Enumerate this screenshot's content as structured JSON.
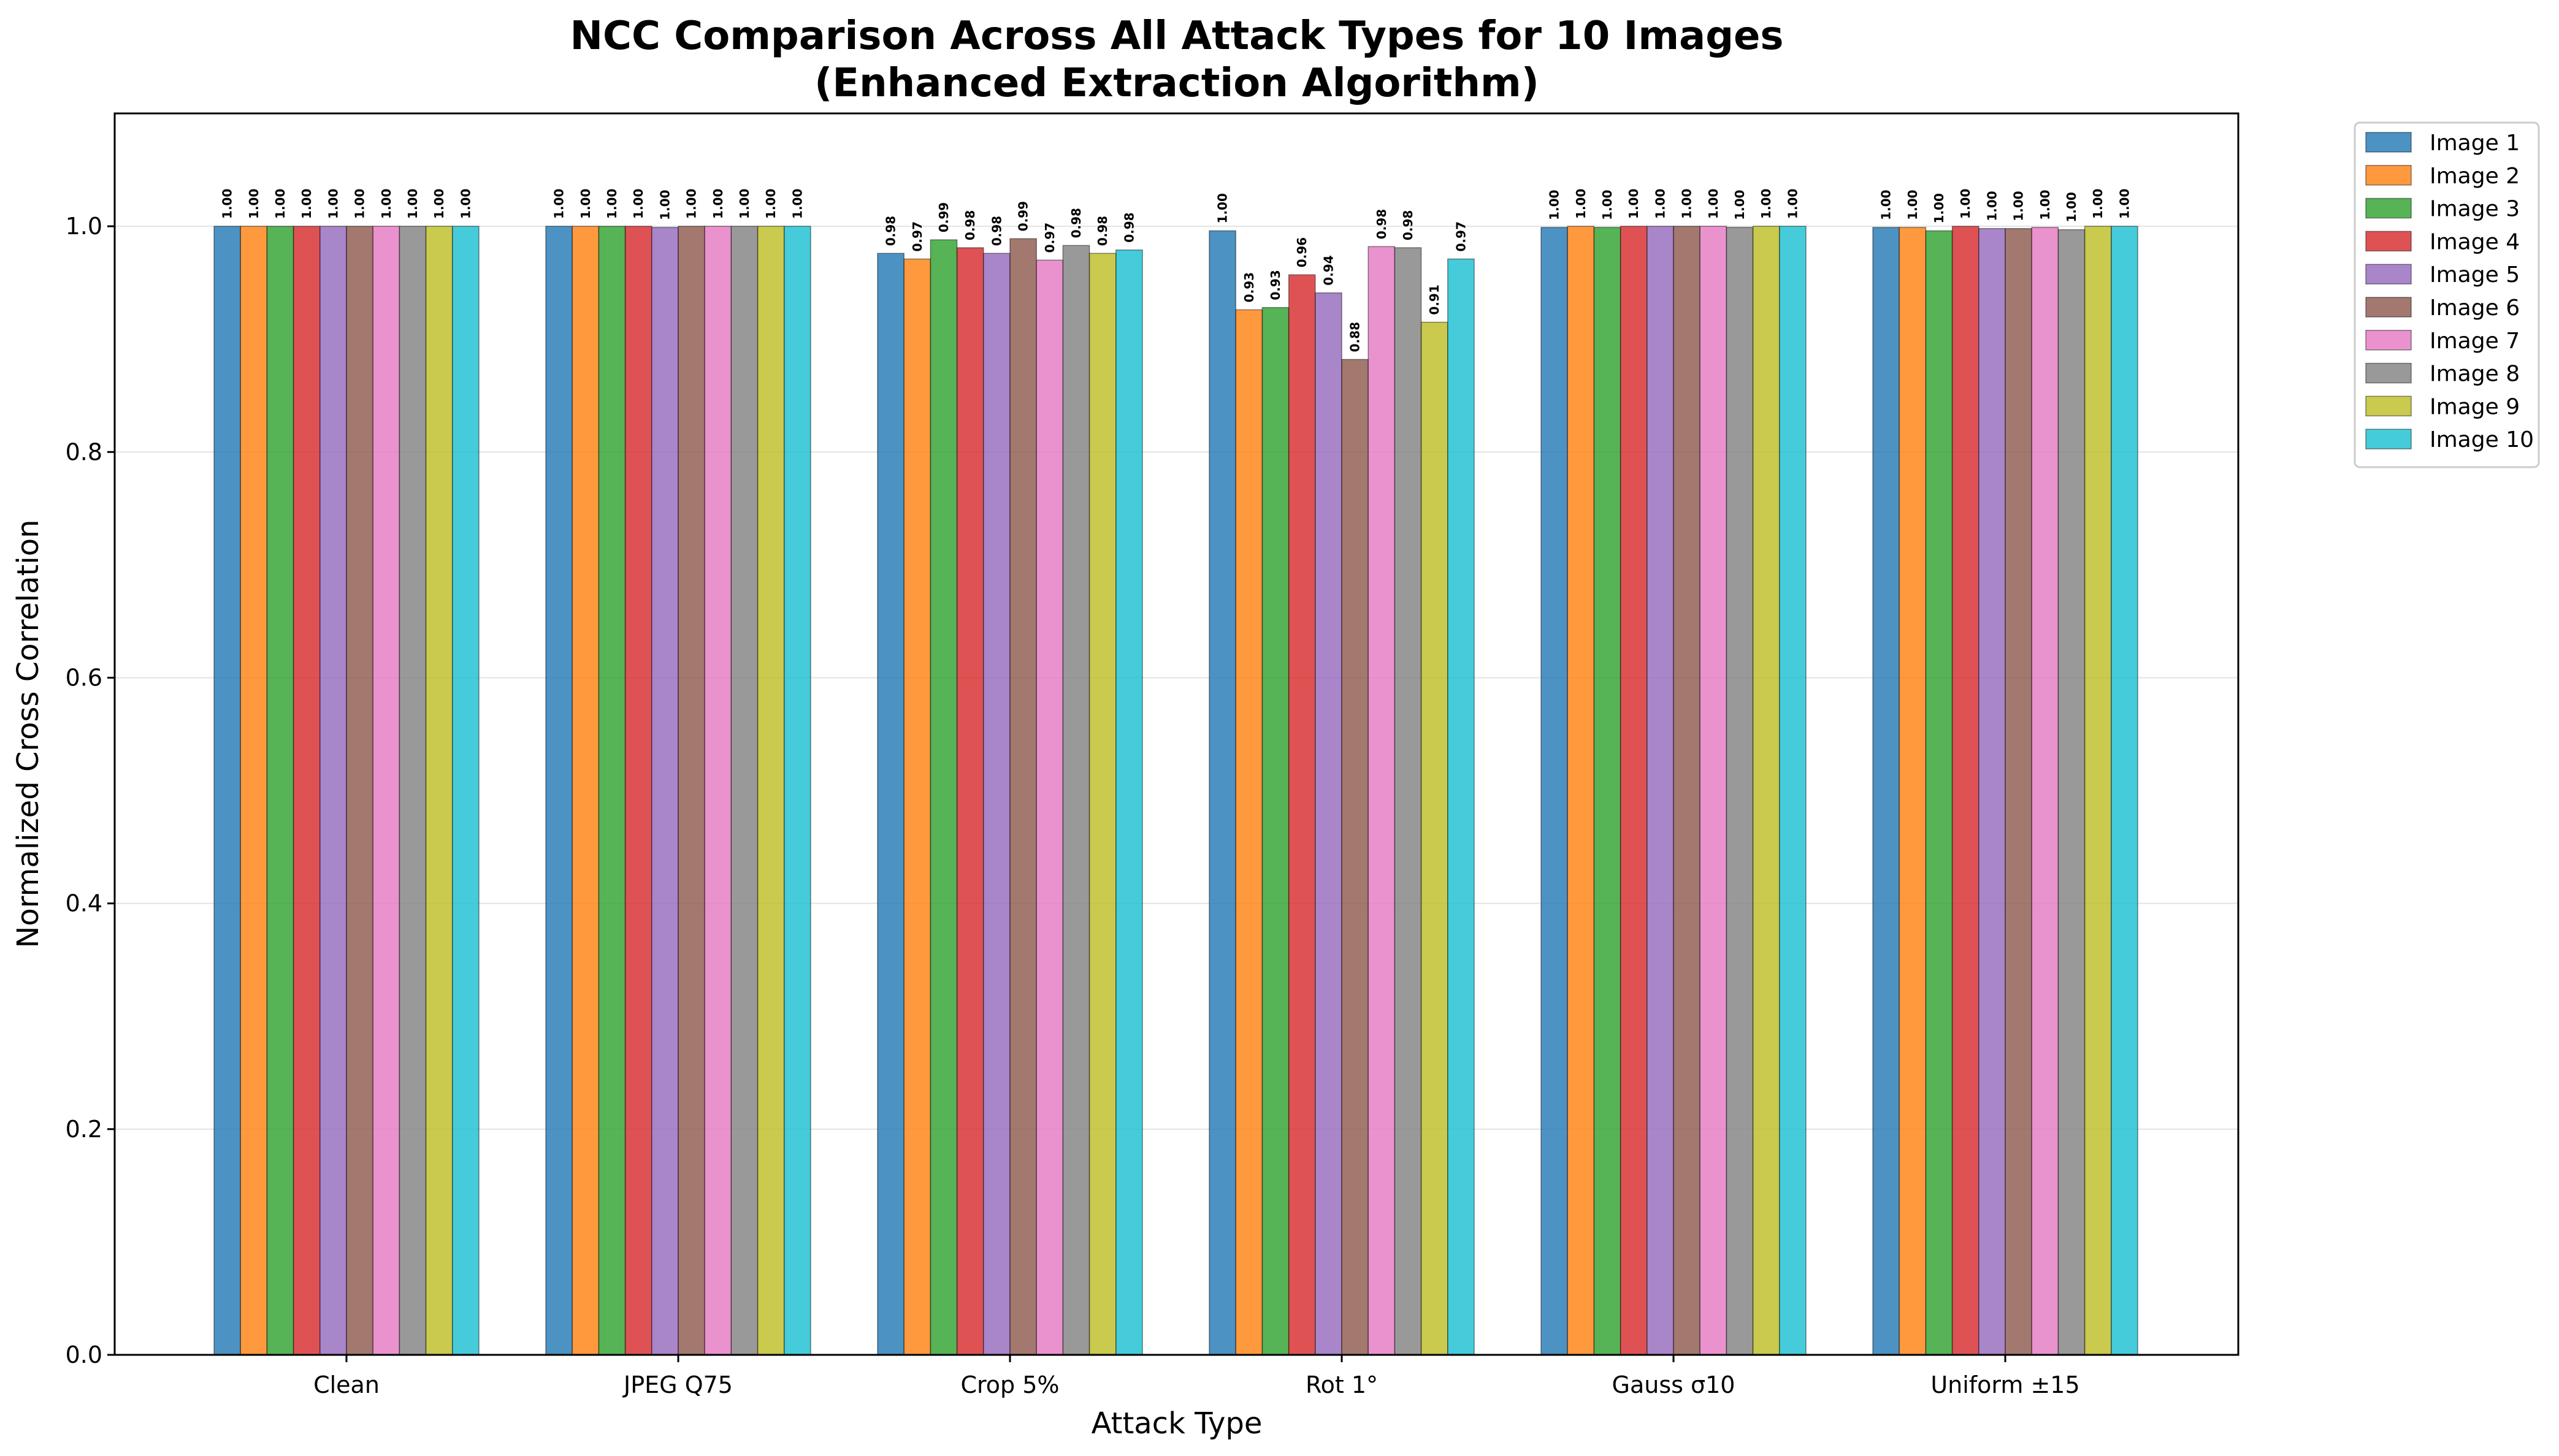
{
  "chart_data": {
    "type": "bar",
    "title": "NCC Comparison Across All Attack Types for 10 Images",
    "subtitle": "(Enhanced Extraction Algorithm)",
    "xlabel": "Attack Type",
    "ylabel": "Normalized Cross Correlation",
    "ylim": [
      0,
      1.1
    ],
    "yticks": [
      "0.0",
      "0.2",
      "0.4",
      "0.6",
      "0.8",
      "1.0"
    ],
    "grid": "y",
    "legend_position": "outside-top-right",
    "categories": [
      "Clean",
      "JPEG Q75",
      "Crop 5%",
      "Rot 1°",
      "Gauss σ10",
      "Uniform ±15"
    ],
    "series": [
      {
        "name": "Image 1",
        "color": "#1f77b4",
        "values": [
          1.0,
          1.0,
          0.976,
          0.996,
          0.999,
          0.999
        ],
        "labels": [
          "1.00",
          "1.00",
          "0.98",
          "1.00",
          "1.00",
          "1.00"
        ]
      },
      {
        "name": "Image 2",
        "color": "#ff7f0e",
        "values": [
          1.0,
          1.0,
          0.971,
          0.926,
          1.0,
          0.999
        ],
        "labels": [
          "1.00",
          "1.00",
          "0.97",
          "0.93",
          "1.00",
          "1.00"
        ]
      },
      {
        "name": "Image 3",
        "color": "#2ca02c",
        "values": [
          1.0,
          1.0,
          0.988,
          0.928,
          0.999,
          0.996
        ],
        "labels": [
          "1.00",
          "1.00",
          "0.99",
          "0.93",
          "1.00",
          "1.00"
        ]
      },
      {
        "name": "Image 4",
        "color": "#d62728",
        "values": [
          1.0,
          1.0,
          0.981,
          0.957,
          1.0,
          1.0
        ],
        "labels": [
          "1.00",
          "1.00",
          "0.98",
          "0.96",
          "1.00",
          "1.00"
        ]
      },
      {
        "name": "Image 5",
        "color": "#9467bd",
        "values": [
          1.0,
          0.999,
          0.976,
          0.941,
          1.0,
          0.998
        ],
        "labels": [
          "1.00",
          "1.00",
          "0.98",
          "0.94",
          "1.00",
          "1.00"
        ]
      },
      {
        "name": "Image 6",
        "color": "#8c564b",
        "values": [
          1.0,
          1.0,
          0.989,
          0.882,
          1.0,
          0.998
        ],
        "labels": [
          "1.00",
          "1.00",
          "0.99",
          "0.88",
          "1.00",
          "1.00"
        ]
      },
      {
        "name": "Image 7",
        "color": "#e377c2",
        "values": [
          1.0,
          1.0,
          0.97,
          0.982,
          1.0,
          0.999
        ],
        "labels": [
          "1.00",
          "1.00",
          "0.97",
          "0.98",
          "1.00",
          "1.00"
        ]
      },
      {
        "name": "Image 8",
        "color": "#7f7f7f",
        "values": [
          1.0,
          1.0,
          0.983,
          0.981,
          0.999,
          0.997
        ],
        "labels": [
          "1.00",
          "1.00",
          "0.98",
          "0.98",
          "1.00",
          "1.00"
        ]
      },
      {
        "name": "Image 9",
        "color": "#bcbd22",
        "values": [
          1.0,
          1.0,
          0.976,
          0.915,
          1.0,
          1.0
        ],
        "labels": [
          "1.00",
          "1.00",
          "0.98",
          "0.91",
          "1.00",
          "1.00"
        ]
      },
      {
        "name": "Image 10",
        "color": "#17becf",
        "values": [
          1.0,
          1.0,
          0.979,
          0.971,
          1.0,
          1.0
        ],
        "labels": [
          "1.00",
          "1.00",
          "0.98",
          "0.97",
          "1.00",
          "1.00"
        ]
      }
    ]
  }
}
